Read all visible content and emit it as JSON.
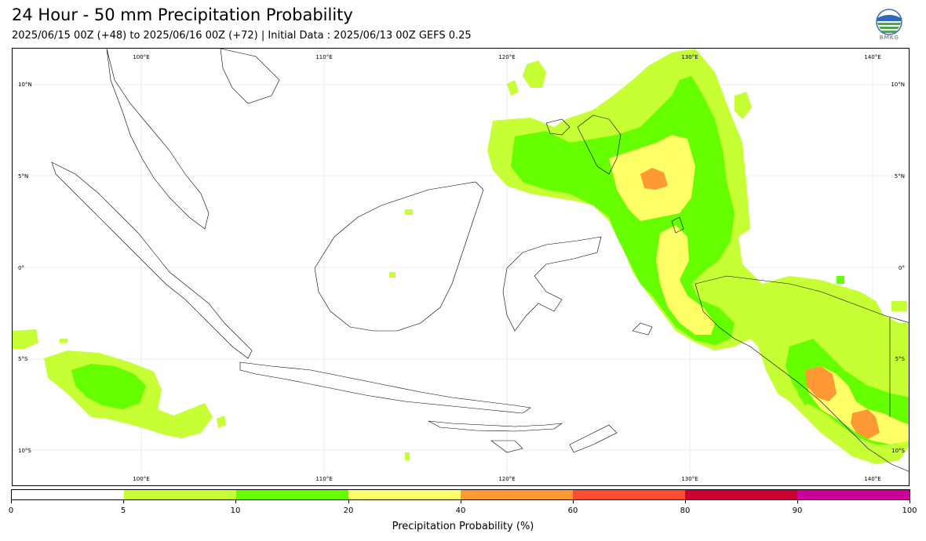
{
  "header": {
    "title": "24 Hour - 50 mm Precipitation Probability",
    "subtitle": "2025/06/15 00Z (+48) to 2025/06/16 00Z (+72) | Initial Data : 2025/06/13 00Z GEFS 0.25",
    "logo_text": "BMKG"
  },
  "map": {
    "lon_labels": [
      "100°E",
      "110°E",
      "120°E",
      "130°E",
      "140°E"
    ],
    "lat_labels": [
      "10°N",
      "5°N",
      "0°",
      "5°S",
      "10°S"
    ]
  },
  "legend": {
    "label": "Precipitation Probability (%)",
    "ticks": [
      "0",
      "5",
      "10",
      "20",
      "40",
      "60",
      "80",
      "90",
      "100"
    ],
    "colors": [
      "#ffffff",
      "#c6ff33",
      "#66ff00",
      "#ffff66",
      "#ff9933",
      "#ff4d33",
      "#cc0033",
      "#cc0099"
    ]
  }
}
